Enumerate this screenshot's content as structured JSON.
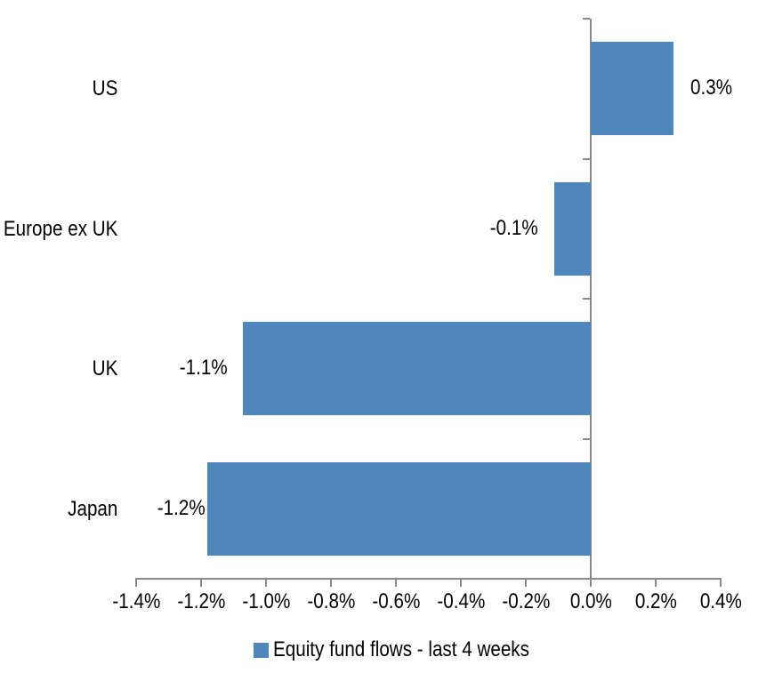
{
  "chart_data": {
    "type": "bar",
    "orientation": "horizontal",
    "title": "",
    "categories": [
      "US",
      "Europe ex UK",
      "UK",
      "Japan"
    ],
    "series": [
      {
        "name": "Equity fund flows - last 4 weeks",
        "values": [
          0.255,
          -0.112,
          -1.071,
          -1.181
        ],
        "data_labels": [
          "0.3%",
          "-0.1%",
          "-1.1%",
          "-1.2%"
        ]
      }
    ],
    "xlabel": "",
    "ylabel": "",
    "xlim": [
      -1.4,
      0.4
    ],
    "x_tick_values": [
      -1.4,
      -1.2,
      -1.0,
      -0.8,
      -0.6,
      -0.4,
      -0.2,
      0.0,
      0.2,
      0.4
    ],
    "x_tick_labels": [
      "-1.4%",
      "-1.2%",
      "-1.0%",
      "-0.8%",
      "-0.6%",
      "-0.4%",
      "-0.2%",
      "0.0%",
      "0.2%",
      "0.4%"
    ],
    "grid": false,
    "legend_position": "bottom",
    "bar_color": "#4E87BC",
    "axis_color": "#8A8A8A",
    "text_color": "#000000"
  },
  "legend": {
    "label": "Equity fund flows - last 4 weeks",
    "marker_color": "#4E87BC"
  }
}
